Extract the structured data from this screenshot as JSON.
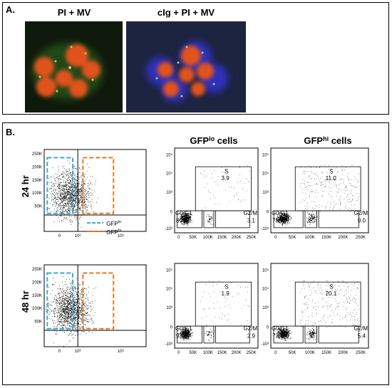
{
  "panel_a": {
    "label": "A.",
    "images": [
      {
        "title": "PI + MV"
      },
      {
        "title": "cIg + PI + MV"
      }
    ]
  },
  "panel_b": {
    "label": "B.",
    "columns": [
      {
        "base": "GFP",
        "sup": "lo",
        "suffix": " cells"
      },
      {
        "base": "GFP",
        "sup": "hi",
        "suffix": " cells"
      }
    ],
    "legend": [
      {
        "base": "GFP",
        "sup": "lo"
      },
      {
        "base": "GFP",
        "sup": "hi"
      }
    ],
    "gate_names": [
      "S",
      "G0/G1",
      "G2/M"
    ],
    "rows": [
      {
        "time": "24 hr",
        "plots": [
          {
            "S": "3.9",
            "G0G1": "89.9",
            "G2M": "3.1"
          },
          {
            "S": "11.0",
            "G0G1": "78.4",
            "G2M": "9.0"
          }
        ]
      },
      {
        "time": "48 hr",
        "plots": [
          {
            "S": "1.9",
            "G0G1": "93.8",
            "G2M": "2.9"
          },
          {
            "S": "20.1",
            "G0G1": "73.4",
            "G2M": "5.4"
          }
        ]
      }
    ],
    "cycle_yticks": [
      "10⁵",
      "10⁴",
      "10³",
      "0",
      "-10³"
    ],
    "cycle_xticks": [
      "0",
      "50K",
      "100K",
      "150K",
      "200K",
      "250K"
    ],
    "gfp_yticks": [
      "250K",
      "200K",
      "150K",
      "100K",
      "50K"
    ],
    "gfp_xticks": [
      "0",
      "10²",
      "10³"
    ]
  }
}
